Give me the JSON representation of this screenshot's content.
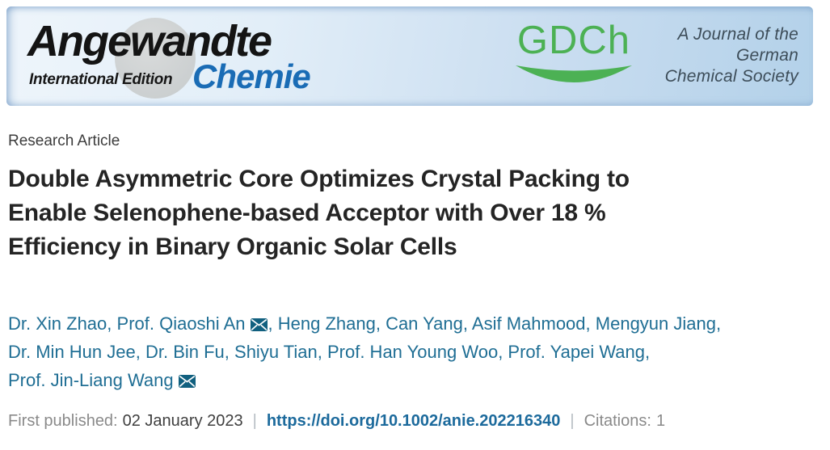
{
  "banner": {
    "journal": {
      "name_top": "Angewandte",
      "name_bottom": "Chemie",
      "edition": "International Edition"
    },
    "society": {
      "abbr": "GDCh",
      "tagline_lines": [
        "A Journal of the",
        "German",
        "Chemical Society"
      ]
    }
  },
  "article": {
    "type_label": "Research Article",
    "title": "Double Asymmetric Core Optimizes Crystal Packing to Enable Selenophene-based Acceptor with Over 18 % Efficiency in Binary Organic Solar Cells",
    "title_lines": [
      "Double Asymmetric Core Optimizes Crystal Packing to",
      "Enable Selenophene-based Acceptor with Over 18 %",
      "Efficiency in Binary Organic Solar Cells"
    ],
    "authors": [
      {
        "name": "Dr. Xin Zhao",
        "email": false,
        "break_after": false
      },
      {
        "name": "Prof. Qiaoshi An",
        "email": true,
        "break_after": false
      },
      {
        "name": "Heng Zhang",
        "email": false,
        "break_after": false
      },
      {
        "name": "Can Yang",
        "email": false,
        "break_after": false
      },
      {
        "name": "Asif Mahmood",
        "email": false,
        "break_after": false
      },
      {
        "name": "Mengyun Jiang",
        "email": false,
        "break_after": true
      },
      {
        "name": "Dr. Min Hun Jee",
        "email": false,
        "break_after": false
      },
      {
        "name": "Dr. Bin Fu",
        "email": false,
        "break_after": false
      },
      {
        "name": "Shiyu Tian",
        "email": false,
        "break_after": false
      },
      {
        "name": "Prof. Han Young Woo",
        "email": false,
        "break_after": false
      },
      {
        "name": "Prof. Yapei Wang",
        "email": false,
        "break_after": true
      },
      {
        "name": "Prof. Jin-Liang Wang",
        "email": true,
        "break_after": false
      }
    ]
  },
  "footer": {
    "first_published_label": "First published:",
    "first_published_date": "02 January 2023",
    "separator": "|",
    "doi_url": "https://doi.org/10.1002/anie.202216340",
    "citations_label": "Citations:",
    "citations_count": "1"
  },
  "colors": {
    "banner_gradient_start": "#eef5fb",
    "banner_gradient_end": "#b3d1e9",
    "journal_blue": "#1a6cb5",
    "gdch_green": "#4cb154",
    "tagline_slate": "#3d4d59",
    "author_teal": "#1f6e94",
    "link_blue": "#1c6a9c",
    "email_icon_teal": "#11607f"
  }
}
